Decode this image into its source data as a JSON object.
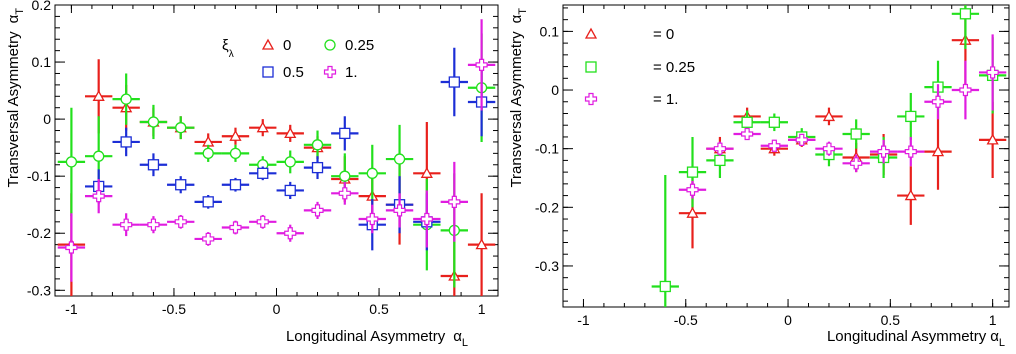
{
  "chart_data": [
    {
      "type": "scatter",
      "xlabel": "Longitudinal Asymmetry",
      "xlabel_symbol": "α",
      "xlabel_sub": "L",
      "ylabel": "Transversal Asymmetry",
      "ylabel_symbol": "α",
      "ylabel_sub": "T",
      "xlim": [
        -1.08,
        1.08
      ],
      "ylim": [
        -0.31,
        0.2
      ],
      "xticks": [
        -1,
        -0.5,
        0,
        0.5,
        1
      ],
      "xtick_labels": [
        "-1",
        "-0.5",
        "0",
        "0.5",
        "1"
      ],
      "yticks": [
        -0.3,
        -0.2,
        -0.1,
        0,
        0.1,
        0.2
      ],
      "ytick_labels": [
        "-0.3",
        "-0.2",
        "-0.1",
        "0",
        "0.1",
        "0.2"
      ],
      "legend_title": "ξ",
      "legend_title_sub": "λ",
      "legend_placement": "top-center",
      "series": [
        {
          "name": "0",
          "marker": "triangle",
          "color": "#e8201c",
          "x": [
            -1.0,
            -0.867,
            -0.733,
            -0.6,
            -0.467,
            -0.333,
            -0.2,
            -0.067,
            0.067,
            0.2,
            0.333,
            0.467,
            0.6,
            0.733,
            0.867,
            1.0
          ],
          "y": [
            -0.22,
            0.04,
            0.02,
            -0.005,
            -0.015,
            -0.04,
            -0.03,
            -0.015,
            -0.025,
            -0.05,
            -0.105,
            -0.135,
            -0.15,
            -0.095,
            -0.275,
            -0.22
          ],
          "yerr": [
            0.09,
            0.065,
            0.04,
            0.025,
            0.02,
            0.015,
            0.015,
            0.015,
            0.015,
            0.02,
            0.04,
            0.05,
            0.07,
            0.09,
            0.09,
            0.09
          ]
        },
        {
          "name": "0.25",
          "marker": "circle",
          "color": "#22e01c",
          "x": [
            -1.0,
            -0.867,
            -0.733,
            -0.6,
            -0.467,
            -0.333,
            -0.2,
            -0.067,
            0.067,
            0.2,
            0.333,
            0.467,
            0.6,
            0.733,
            0.867,
            1.0
          ],
          "y": [
            -0.075,
            -0.065,
            0.035,
            -0.005,
            -0.015,
            -0.06,
            -0.06,
            -0.08,
            -0.075,
            -0.045,
            -0.1,
            -0.095,
            -0.07,
            -0.185,
            -0.195,
            0.055
          ],
          "yerr": [
            0.095,
            0.07,
            0.045,
            0.03,
            0.02,
            0.015,
            0.015,
            0.015,
            0.02,
            0.025,
            0.04,
            0.05,
            0.06,
            0.08,
            0.1,
            0.095
          ]
        },
        {
          "name": "0.5",
          "marker": "square",
          "color": "#1c2ed6",
          "x": [
            -0.867,
            -0.733,
            -0.6,
            -0.467,
            -0.333,
            -0.2,
            -0.067,
            0.067,
            0.2,
            0.333,
            0.467,
            0.6,
            0.733,
            0.867,
            1.0
          ],
          "y": [
            -0.118,
            -0.04,
            -0.08,
            -0.115,
            -0.145,
            -0.115,
            -0.095,
            -0.125,
            -0.085,
            -0.025,
            -0.185,
            -0.15,
            -0.18,
            0.065,
            0.03
          ],
          "yerr": [
            0.03,
            0.025,
            0.02,
            0.015,
            0.012,
            0.012,
            0.012,
            0.015,
            0.02,
            0.03,
            0.045,
            0.05,
            0.05,
            0.06,
            0.06
          ]
        },
        {
          "name": "1.",
          "marker": "cross",
          "color": "#e01ce0",
          "x": [
            -1.0,
            -0.867,
            -0.733,
            -0.6,
            -0.467,
            -0.333,
            -0.2,
            -0.067,
            0.067,
            0.2,
            0.333,
            0.467,
            0.6,
            0.733,
            0.867,
            1.0
          ],
          "y": [
            -0.225,
            -0.135,
            -0.185,
            -0.185,
            -0.18,
            -0.21,
            -0.19,
            -0.18,
            -0.2,
            -0.16,
            -0.13,
            -0.175,
            -0.16,
            -0.175,
            -0.145,
            0.095
          ],
          "yerr": [
            0.06,
            0.03,
            0.02,
            0.015,
            0.012,
            0.012,
            0.012,
            0.012,
            0.015,
            0.015,
            0.02,
            0.025,
            0.03,
            0.05,
            0.07,
            0.08
          ]
        }
      ]
    },
    {
      "type": "scatter",
      "xlabel": "Longitudinal Asymmetry",
      "xlabel_symbol": "α",
      "xlabel_sub": "L",
      "ylabel": "Transversal Asymmetry",
      "ylabel_symbol": "α",
      "ylabel_sub": "T",
      "xlim": [
        -1.1,
        1.08
      ],
      "ylim": [
        -0.37,
        0.145
      ],
      "xticks": [
        -1,
        -0.5,
        0,
        0.5,
        1
      ],
      "xtick_labels": [
        "-1",
        "-0.5",
        "0",
        "0.5",
        "1"
      ],
      "yticks": [
        -0.3,
        -0.2,
        -0.1,
        0,
        0.1
      ],
      "ytick_labels": [
        "-0.3",
        "-0.2",
        "-0.1",
        "0",
        "0.1"
      ],
      "legend_placement": "top-left",
      "legend_labels": [
        "= 0",
        "= 0.25",
        "= 1."
      ],
      "series": [
        {
          "name": "= 0",
          "marker": "triangle",
          "color": "#e8201c",
          "x": [
            -0.467,
            -0.333,
            -0.2,
            -0.067,
            0.067,
            0.2,
            0.333,
            0.467,
            0.6,
            0.733,
            0.867,
            1.0
          ],
          "y": [
            -0.21,
            -0.1,
            -0.045,
            -0.1,
            -0.085,
            -0.045,
            -0.115,
            -0.11,
            -0.18,
            -0.105,
            0.085,
            -0.085
          ],
          "yerr": [
            0.06,
            0.02,
            0.015,
            0.012,
            0.012,
            0.015,
            0.025,
            0.035,
            0.05,
            0.065,
            0.08,
            0.065
          ]
        },
        {
          "name": "= 0.25",
          "marker": "square",
          "color": "#22e01c",
          "x": [
            -0.6,
            -0.467,
            -0.333,
            -0.2,
            -0.067,
            0.067,
            0.2,
            0.333,
            0.467,
            0.6,
            0.733,
            0.867,
            1.0
          ],
          "y": [
            -0.335,
            -0.14,
            -0.12,
            -0.055,
            -0.055,
            -0.08,
            -0.11,
            -0.075,
            -0.115,
            -0.045,
            0.005,
            0.13,
            0.025
          ],
          "yerr": [
            0.19,
            0.06,
            0.03,
            0.02,
            0.015,
            0.015,
            0.02,
            0.025,
            0.035,
            0.04,
            0.045,
            0.06,
            0.065
          ]
        },
        {
          "name": "= 1.",
          "marker": "cross",
          "color": "#e01ce0",
          "x": [
            -0.467,
            -0.333,
            -0.2,
            -0.067,
            0.067,
            0.2,
            0.333,
            0.467,
            0.6,
            0.733,
            0.867,
            1.0
          ],
          "y": [
            -0.17,
            -0.1,
            -0.075,
            -0.095,
            -0.085,
            -0.1,
            -0.125,
            -0.105,
            -0.105,
            -0.02,
            0.0,
            0.03
          ],
          "yerr": [
            0.015,
            0.012,
            0.01,
            0.01,
            0.01,
            0.012,
            0.015,
            0.02,
            0.025,
            0.03,
            0.05,
            0.065
          ]
        }
      ]
    }
  ]
}
